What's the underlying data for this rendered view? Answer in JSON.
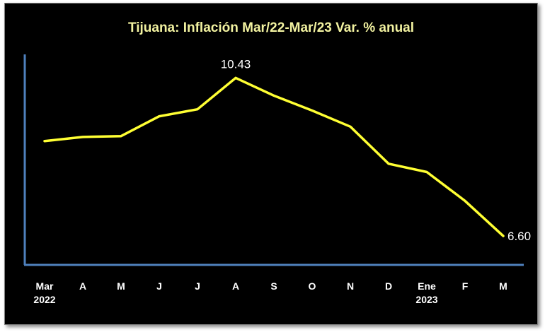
{
  "chart_data": {
    "type": "line",
    "title": "Tijuana: Inflación Mar/22-Mar/23 Var. % anual",
    "xlabel": "",
    "ylabel": "",
    "categories": [
      "Mar",
      "A",
      "M",
      "J",
      "J",
      "A",
      "S",
      "O",
      "N",
      "D",
      "Ene",
      "F",
      "M"
    ],
    "category_years": [
      "2022",
      "",
      "",
      "",
      "",
      "",
      "",
      "",
      "",
      "",
      "2023",
      "",
      ""
    ],
    "series": [
      {
        "values": [
          8.9,
          9.0,
          9.02,
          9.5,
          9.67,
          10.43,
          10.0,
          9.64,
          9.25,
          8.35,
          8.15,
          7.45,
          6.6
        ]
      }
    ],
    "data_labels": [
      {
        "index": 5,
        "text": "10.43"
      },
      {
        "index": 12,
        "text": "6.60"
      }
    ],
    "ylim": [
      5.9,
      11.0
    ],
    "grid": false,
    "legend": "none",
    "colors": {
      "background": "#000000",
      "line": "#ffff33",
      "axis": "#4f81bd",
      "title": "#f2f2a0",
      "text": "#ffffff"
    }
  }
}
